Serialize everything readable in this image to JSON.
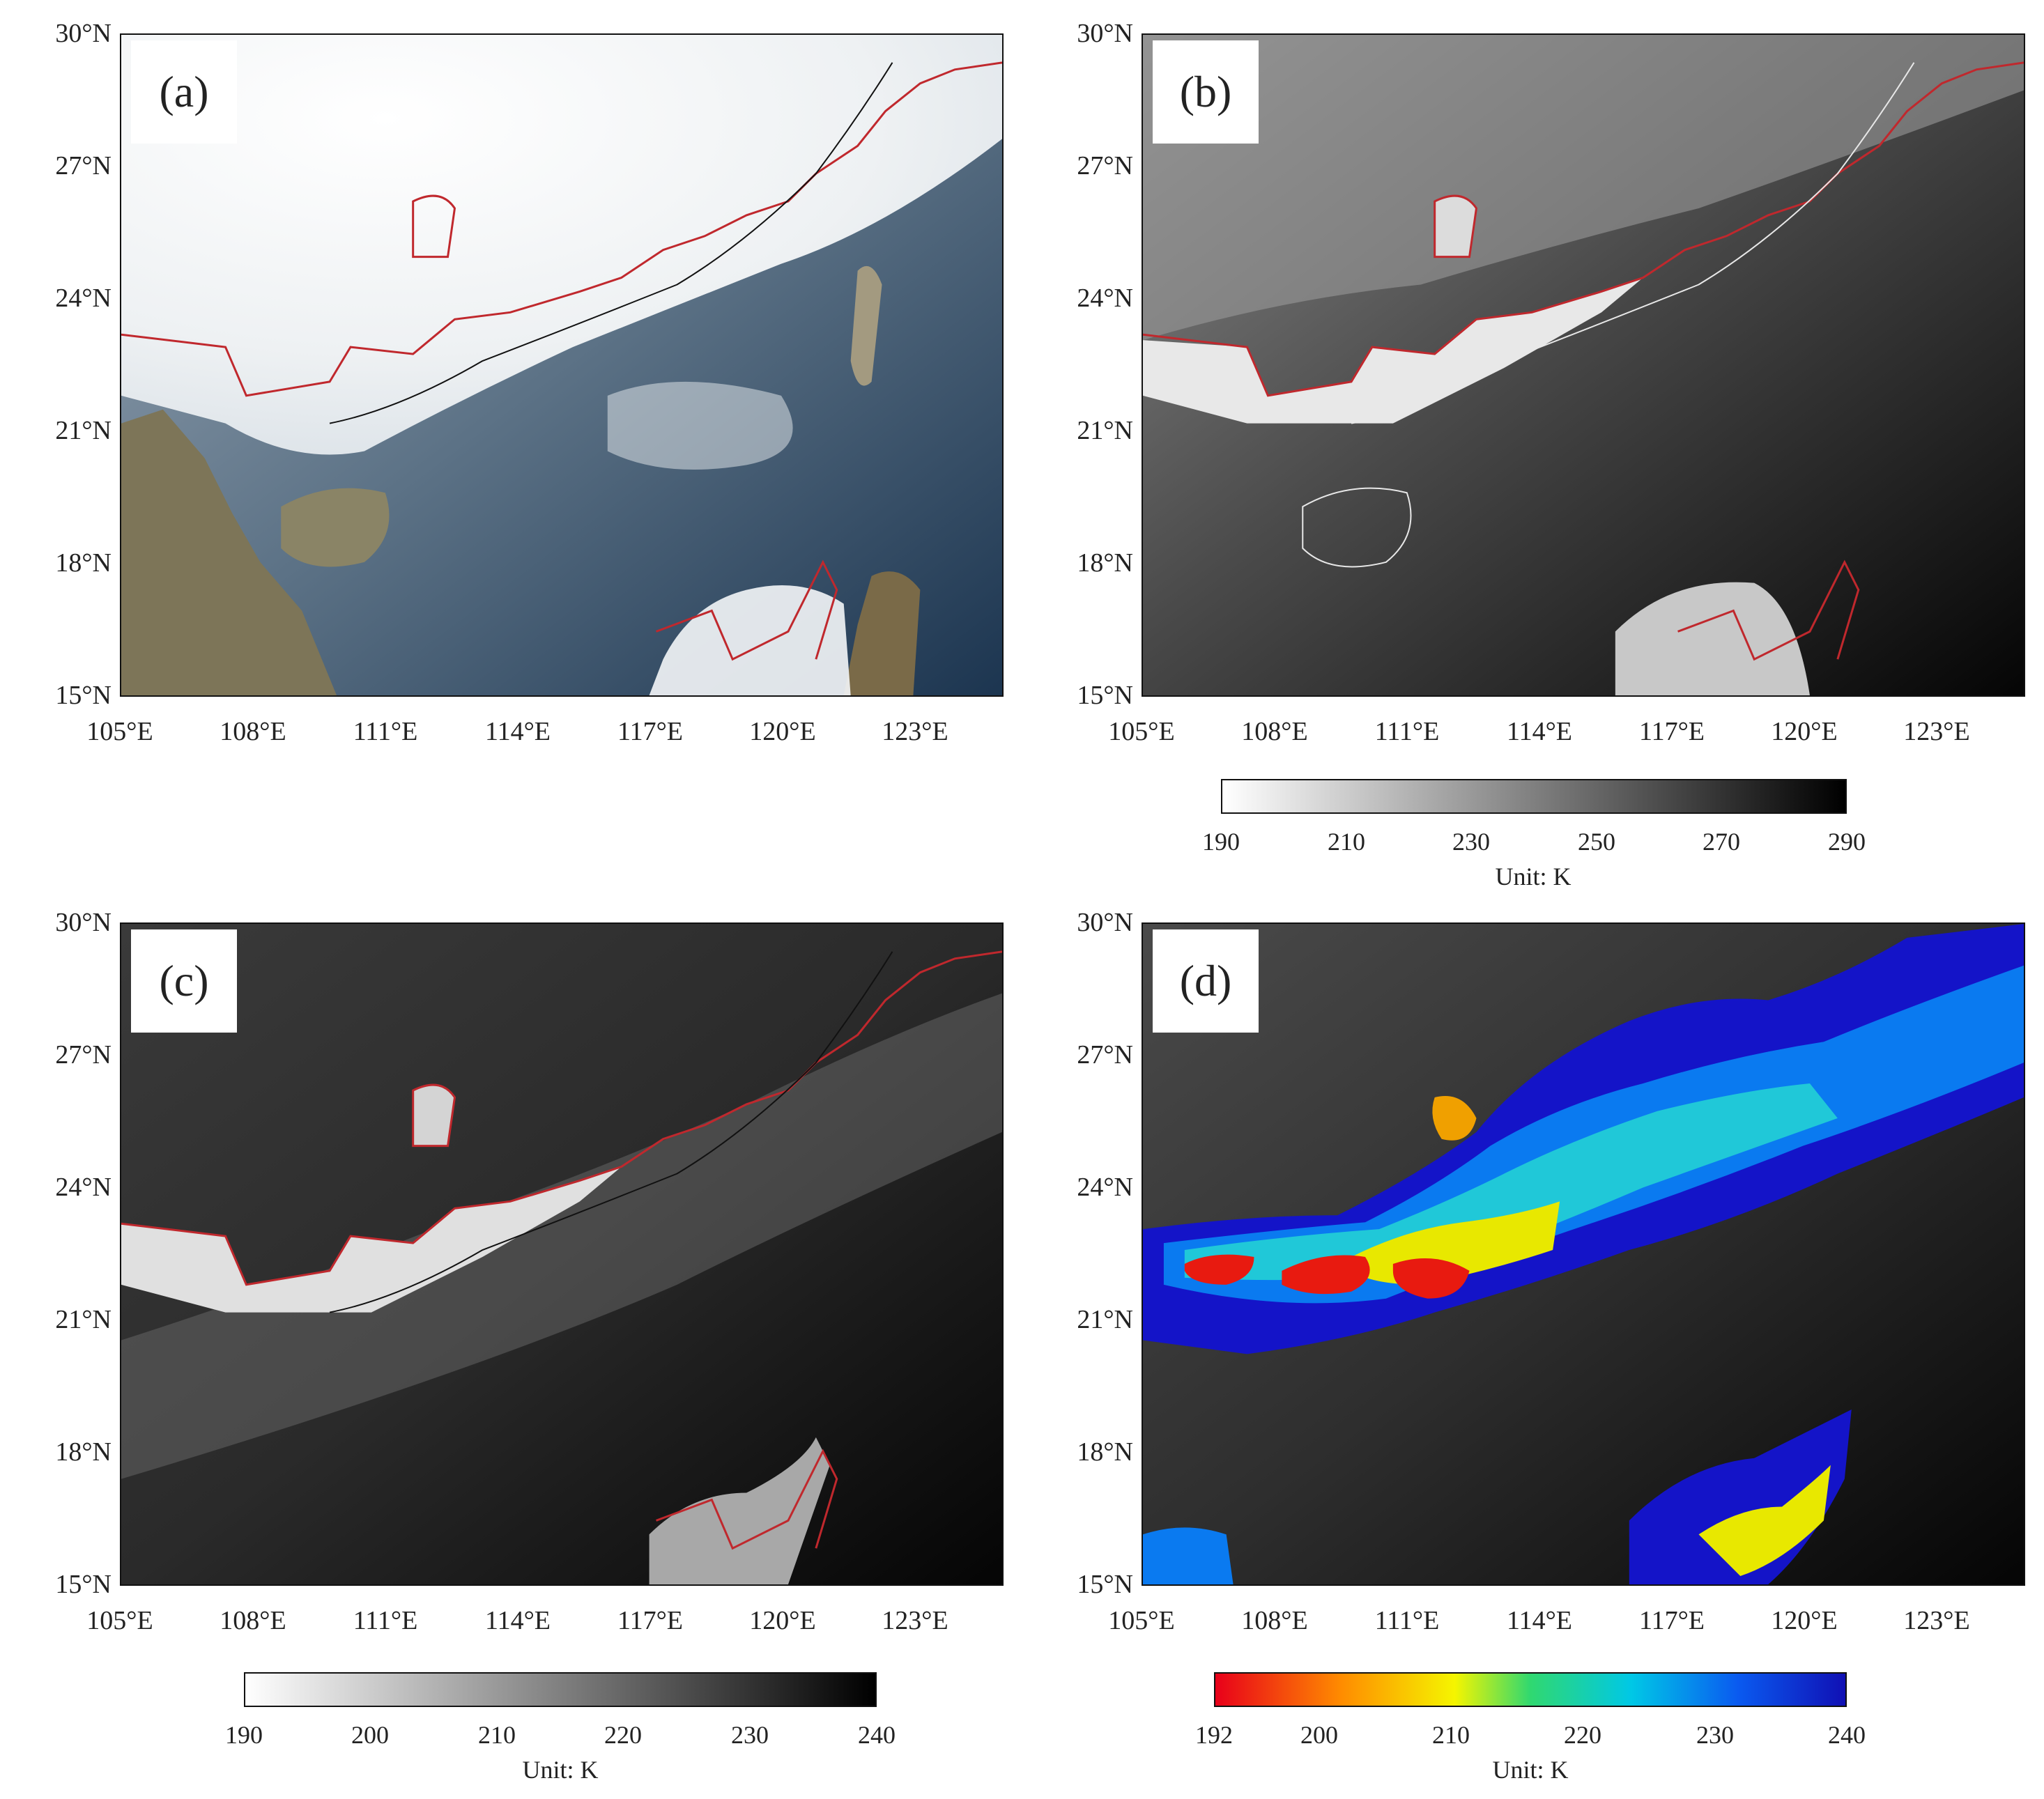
{
  "panels": [
    {
      "label": "(a)",
      "type": "true-color"
    },
    {
      "label": "(b)",
      "type": "brightness-temperature"
    },
    {
      "label": "(c)",
      "type": "brightness-temperature"
    },
    {
      "label": "(d)",
      "type": "brightness-temperature-colored"
    }
  ],
  "lat_labels": [
    "30°N",
    "27°N",
    "24°N",
    "21°N",
    "18°N",
    "15°N"
  ],
  "lon_labels": [
    "105°E",
    "108°E",
    "111°E",
    "114°E",
    "117°E",
    "120°E",
    "123°E"
  ],
  "colorbars": {
    "b": {
      "ticks": [
        "190",
        "210",
        "230",
        "250",
        "270",
        "290"
      ],
      "unit": "Unit: K",
      "colors": [
        "#ffffff",
        "#000000"
      ]
    },
    "c": {
      "ticks": [
        "190",
        "200",
        "210",
        "220",
        "230",
        "240"
      ],
      "unit": "Unit: K",
      "colors": [
        "#ffffff",
        "#000000"
      ]
    },
    "d": {
      "ticks": [
        "192",
        "200",
        "210",
        "220",
        "230",
        "240"
      ],
      "unit": "Unit: K",
      "colors": [
        "#e8001a",
        "#ff8c00",
        "#f5f500",
        "#30d870",
        "#00c8e6",
        "#0a5af0",
        "#1010b4"
      ]
    }
  },
  "colors": {
    "contour": "#c0282d",
    "coast_dark": "#111111",
    "coast_light": "#e8e8e8"
  }
}
